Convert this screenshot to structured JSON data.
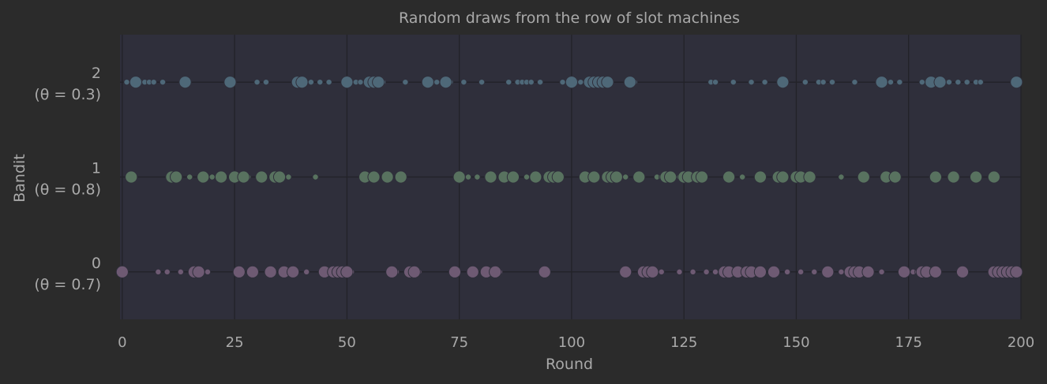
{
  "chart_data": {
    "type": "scatter",
    "title": "Random draws from the row of slot machines",
    "xlabel": "Round",
    "ylabel": "Bandit",
    "xlim": [
      -0.5,
      200
    ],
    "ylim": [
      -0.5,
      2.5
    ],
    "xticks": [
      0,
      25,
      50,
      75,
      100,
      125,
      150,
      175,
      200
    ],
    "grid": true,
    "colors": {
      "page_background": "#2b2b2b",
      "plot_background": "#2f2f3b",
      "grid": "#222228",
      "text": "#a9a9a9",
      "bandit_0": "#6e5a73",
      "bandit_1": "#58725f",
      "bandit_2": "#4e6878"
    },
    "y_categories": [
      {
        "value": 0,
        "label": "0",
        "sublabel": "(θ = 0.7)"
      },
      {
        "value": 1,
        "label": "1",
        "sublabel": "(θ = 0.8)"
      },
      {
        "value": 2,
        "label": "2",
        "sublabel": "(θ = 0.3)"
      }
    ],
    "marker_size_meaning": "large marker = reward 1, small marker = reward 0",
    "series": [
      {
        "bandit": 0,
        "big": [
          0,
          16,
          17,
          26,
          29,
          33,
          36,
          38,
          45,
          47,
          48,
          49,
          50,
          60,
          64,
          65,
          74,
          78,
          81,
          83,
          94,
          112,
          116,
          117,
          118,
          134,
          135,
          137,
          139,
          140,
          142,
          145,
          157,
          162,
          163,
          164,
          166,
          174,
          178,
          179,
          181,
          187,
          194,
          195,
          196,
          197,
          198,
          199
        ],
        "small": [
          8,
          10,
          13,
          19,
          41,
          51,
          61,
          66,
          84,
          120,
          124,
          127,
          130,
          132,
          148,
          151,
          154,
          160,
          176,
          177,
          169
        ]
      },
      {
        "bandit": 1,
        "big": [
          2,
          11,
          12,
          18,
          22,
          25,
          27,
          31,
          34,
          35,
          54,
          56,
          59,
          62,
          75,
          82,
          85,
          87,
          92,
          95,
          96,
          97,
          103,
          105,
          108,
          109,
          110,
          115,
          121,
          122,
          125,
          126,
          128,
          129,
          135,
          142,
          146,
          147,
          150,
          151,
          153,
          170,
          172,
          165,
          181,
          185,
          190,
          194
        ],
        "small": [
          15,
          18,
          20,
          28,
          37,
          43,
          77,
          79,
          90,
          112,
          119,
          120,
          124,
          138,
          160
        ]
      },
      {
        "bandit": 2,
        "big": [
          3,
          14,
          24,
          39,
          40,
          50,
          55,
          56,
          57,
          68,
          72,
          100,
          104,
          105,
          106,
          107,
          108,
          113,
          147,
          169,
          180,
          182,
          199
        ],
        "small": [
          1,
          4,
          5,
          6,
          7,
          9,
          30,
          32,
          42,
          44,
          46,
          52,
          53,
          58,
          63,
          69,
          70,
          73,
          76,
          80,
          86,
          88,
          89,
          90,
          91,
          93,
          98,
          101,
          102,
          114,
          131,
          132,
          136,
          140,
          143,
          152,
          155,
          156,
          158,
          163,
          171,
          173,
          178,
          183,
          184,
          186,
          188,
          190,
          191
        ]
      }
    ]
  }
}
